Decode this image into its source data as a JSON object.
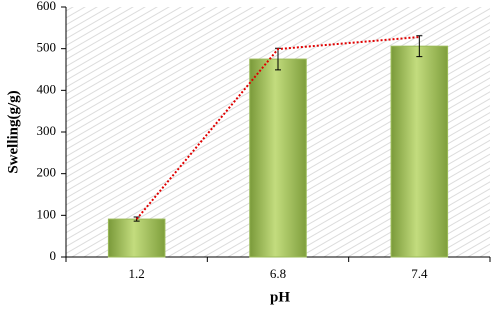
{
  "chart_data": {
    "type": "bar",
    "x_label": "pH",
    "y_label": "Swelling(g/g)",
    "categories": [
      "1.2",
      "6.8",
      "7.4"
    ],
    "series": [
      {
        "type": "bar",
        "color": "#9bbb59",
        "values": [
          91,
          475,
          506
        ],
        "errors": [
          5,
          26,
          25
        ]
      },
      {
        "type": "line",
        "color": "#e00000",
        "values": [
          91,
          499,
          528
        ]
      }
    ],
    "ylim": [
      0,
      600
    ],
    "yticks": [
      0,
      100,
      200,
      300,
      400,
      500,
      600
    ]
  }
}
